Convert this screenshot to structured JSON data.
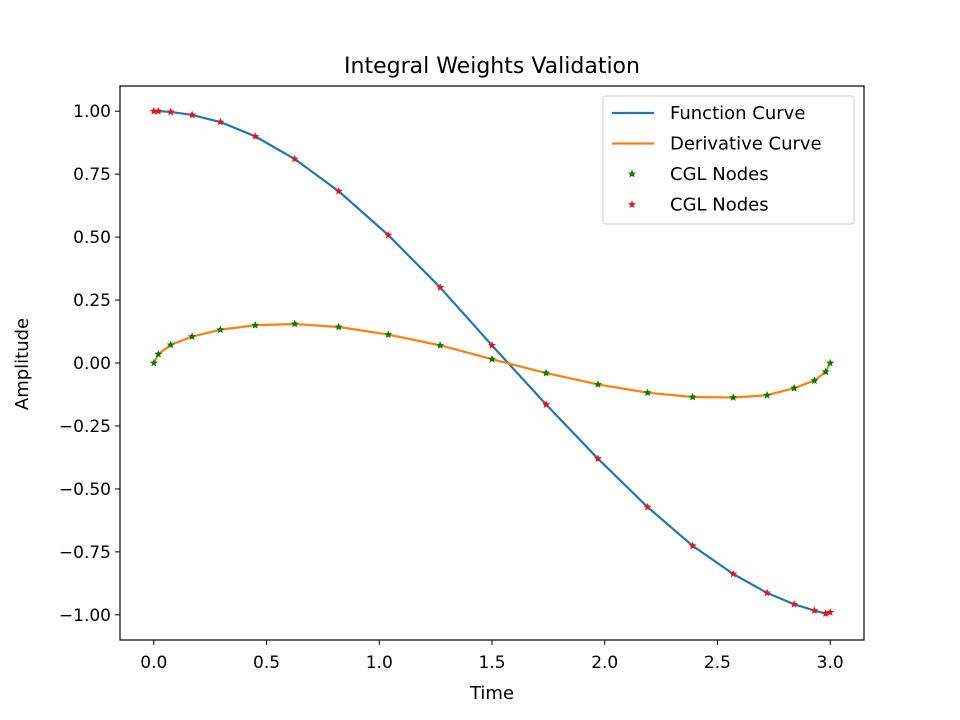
{
  "chart_data": {
    "type": "line",
    "title": "Integral Weights Validation",
    "xlabel": "Time",
    "ylabel": "Amplitude",
    "xlim": [
      -0.15,
      3.15
    ],
    "ylim": [
      -1.1,
      1.1
    ],
    "xticks": [
      "0.0",
      "0.5",
      "1.0",
      "1.5",
      "2.0",
      "2.5",
      "3.0"
    ],
    "xtick_values": [
      0.0,
      0.5,
      1.0,
      1.5,
      2.0,
      2.5,
      3.0
    ],
    "yticks": [
      "−1.00",
      "−0.75",
      "−0.50",
      "−0.25",
      "0.00",
      "0.25",
      "0.50",
      "0.75",
      "1.00"
    ],
    "ytick_values": [
      -1.0,
      -0.75,
      -0.5,
      -0.25,
      0.0,
      0.25,
      0.5,
      0.75,
      1.0
    ],
    "grid": false,
    "legend_position": "top-right",
    "series": [
      {
        "name": "Function Curve",
        "kind": "line",
        "color": "#1f77b4",
        "x": [
          0.0,
          0.02,
          0.075,
          0.17,
          0.295,
          0.45,
          0.625,
          0.82,
          1.04,
          1.27,
          1.5,
          1.74,
          1.97,
          2.19,
          2.39,
          2.57,
          2.72,
          2.84,
          2.93,
          2.98,
          3.0
        ],
        "y": [
          1.0,
          1.0,
          0.997,
          0.985,
          0.957,
          0.9,
          0.81,
          0.682,
          0.508,
          0.3,
          0.07,
          -0.165,
          -0.38,
          -0.572,
          -0.726,
          -0.838,
          -0.913,
          -0.958,
          -0.983,
          -0.995,
          -0.99
        ]
      },
      {
        "name": "Derivative Curve",
        "kind": "line",
        "color": "#ff7f0e",
        "x": [
          0.0,
          0.02,
          0.075,
          0.17,
          0.295,
          0.45,
          0.625,
          0.82,
          1.04,
          1.27,
          1.5,
          1.74,
          1.97,
          2.19,
          2.39,
          2.57,
          2.72,
          2.84,
          2.93,
          2.98,
          3.0
        ],
        "y": [
          0.0,
          0.035,
          0.072,
          0.105,
          0.132,
          0.15,
          0.155,
          0.143,
          0.113,
          0.07,
          0.015,
          -0.04,
          -0.085,
          -0.118,
          -0.135,
          -0.137,
          -0.128,
          -0.1,
          -0.07,
          -0.035,
          0.0
        ]
      },
      {
        "name": "CGL Nodes",
        "kind": "scatter",
        "color": "#008000",
        "x": [
          0.0,
          0.02,
          0.075,
          0.17,
          0.295,
          0.45,
          0.625,
          0.82,
          1.04,
          1.27,
          1.5,
          1.74,
          1.97,
          2.19,
          2.39,
          2.57,
          2.72,
          2.84,
          2.93,
          2.98,
          3.0
        ],
        "y": [
          0.0,
          0.035,
          0.072,
          0.105,
          0.132,
          0.15,
          0.155,
          0.143,
          0.113,
          0.07,
          0.015,
          -0.04,
          -0.085,
          -0.118,
          -0.135,
          -0.137,
          -0.128,
          -0.1,
          -0.07,
          -0.035,
          0.0
        ]
      },
      {
        "name": "CGL Nodes",
        "kind": "scatter",
        "color": "#e8141c",
        "x": [
          0.0,
          0.02,
          0.075,
          0.17,
          0.295,
          0.45,
          0.625,
          0.82,
          1.04,
          1.27,
          1.5,
          1.74,
          1.97,
          2.19,
          2.39,
          2.57,
          2.72,
          2.84,
          2.93,
          2.98,
          3.0
        ],
        "y": [
          1.0,
          1.0,
          0.997,
          0.985,
          0.957,
          0.9,
          0.81,
          0.682,
          0.508,
          0.3,
          0.07,
          -0.165,
          -0.38,
          -0.572,
          -0.726,
          -0.838,
          -0.913,
          -0.958,
          -0.983,
          -0.995,
          -0.99
        ]
      }
    ]
  }
}
